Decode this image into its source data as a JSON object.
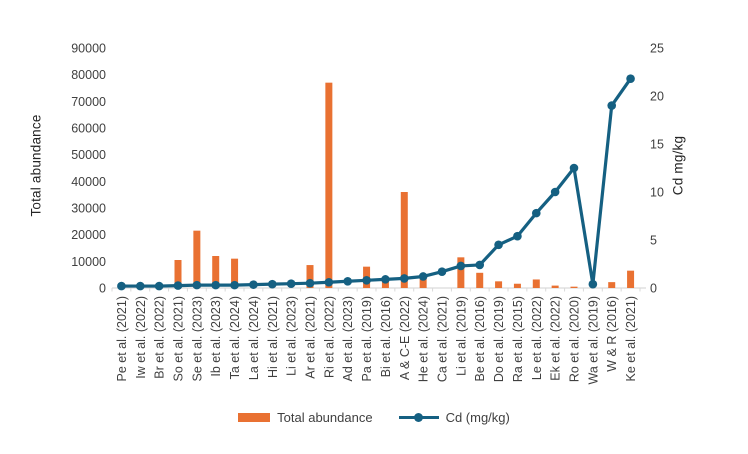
{
  "figure": {
    "left_axis": {
      "title": "Total abundance",
      "ticks": [
        0,
        10000,
        20000,
        30000,
        40000,
        50000,
        60000,
        70000,
        80000,
        90000
      ]
    },
    "right_axis": {
      "title": "Cd mg/kg",
      "ticks": [
        0,
        5,
        10,
        15,
        20,
        25
      ]
    },
    "legend": {
      "bar_label": "Total abundance",
      "line_label": "Cd (mg/kg)"
    },
    "colors": {
      "bar": "#E97132",
      "line": "#156082",
      "axis_line": "#D9D9D9",
      "tick_text": "#404040"
    }
  },
  "chart_data": {
    "type": "combo bar+line, dual axis",
    "title": "",
    "xlabel": "",
    "left_ylabel": "Total abundance",
    "right_ylabel": "Cd mg/kg",
    "left_ylim": [
      0,
      90000
    ],
    "right_ylim": [
      0,
      25
    ],
    "grid": false,
    "legend_position": "bottom",
    "categories": [
      "Pe et al. (2021)",
      "Iw et al. (2022)",
      "Br et al. (2022)",
      "So et al. (2021)",
      "Se et al. (2023)",
      "Ib et al. (2023)",
      "Ta et al. (2024)",
      "La et al. (2024)",
      "Hi et al. (2021)",
      "Li et al. (2023)",
      "Ar et al. (2021)",
      "Ri et al. (2022)",
      "Ad et al. (2023)",
      "Pa et al. (2019)",
      "Bi et al. (2016)",
      "A & C-E (2022)",
      "He et al. (2024)",
      "Ca et al. (2021)",
      "Li et al. (2019)",
      "Be et al. (2016)",
      "Do et al. (2019)",
      "Ra et al. (2015)",
      "Le et al. (2022)",
      "Ek et al. (2022)",
      "Ro et al. (2020)",
      "Wa et al. (2019)",
      "W & R (2016)",
      "Ke et al. (2021)"
    ],
    "series": [
      {
        "name": "Total abundance",
        "type": "bar",
        "axis": "left",
        "color": "#E97132",
        "values": [
          0,
          0,
          0,
          10500,
          21500,
          12000,
          11000,
          0,
          0,
          0,
          8600,
          77000,
          0,
          8000,
          2500,
          36000,
          4000,
          0,
          11500,
          5700,
          2500,
          1600,
          3200,
          900,
          500,
          0,
          2200,
          6500
        ]
      },
      {
        "name": "Cd (mg/kg)",
        "type": "line",
        "axis": "right",
        "color": "#156082",
        "values": [
          0.2,
          0.2,
          0.2,
          0.25,
          0.3,
          0.3,
          0.3,
          0.35,
          0.4,
          0.45,
          0.5,
          0.6,
          0.7,
          0.8,
          0.9,
          1.0,
          1.2,
          1.7,
          2.3,
          2.4,
          4.5,
          5.4,
          7.8,
          10.0,
          12.5,
          0.4,
          19.0,
          21.8
        ]
      }
    ]
  }
}
